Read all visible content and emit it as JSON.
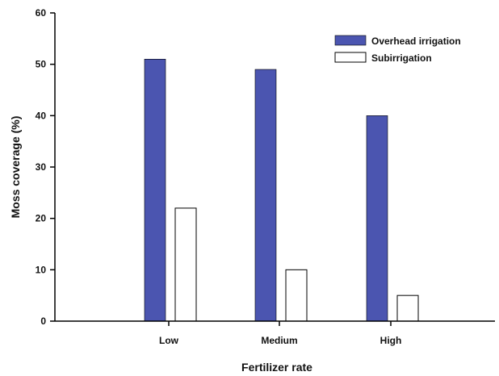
{
  "chart_data": {
    "type": "bar",
    "title": "",
    "xlabel": "Fertilizer rate",
    "ylabel": "Moss coverage (%)",
    "categories": [
      "Low",
      "Medium",
      "High"
    ],
    "ylim": [
      0,
      60
    ],
    "yticks": [
      "0",
      "10",
      "20",
      "30",
      "40",
      "50",
      "60"
    ],
    "grid": false,
    "legend_position": "top-right",
    "series": [
      {
        "name": "Overhead irrigation",
        "values": [
          51,
          49,
          40
        ],
        "color": "#4b55b0"
      },
      {
        "name": "Subirrigation",
        "values": [
          22,
          10,
          5
        ],
        "color": "#ffffff"
      }
    ]
  }
}
